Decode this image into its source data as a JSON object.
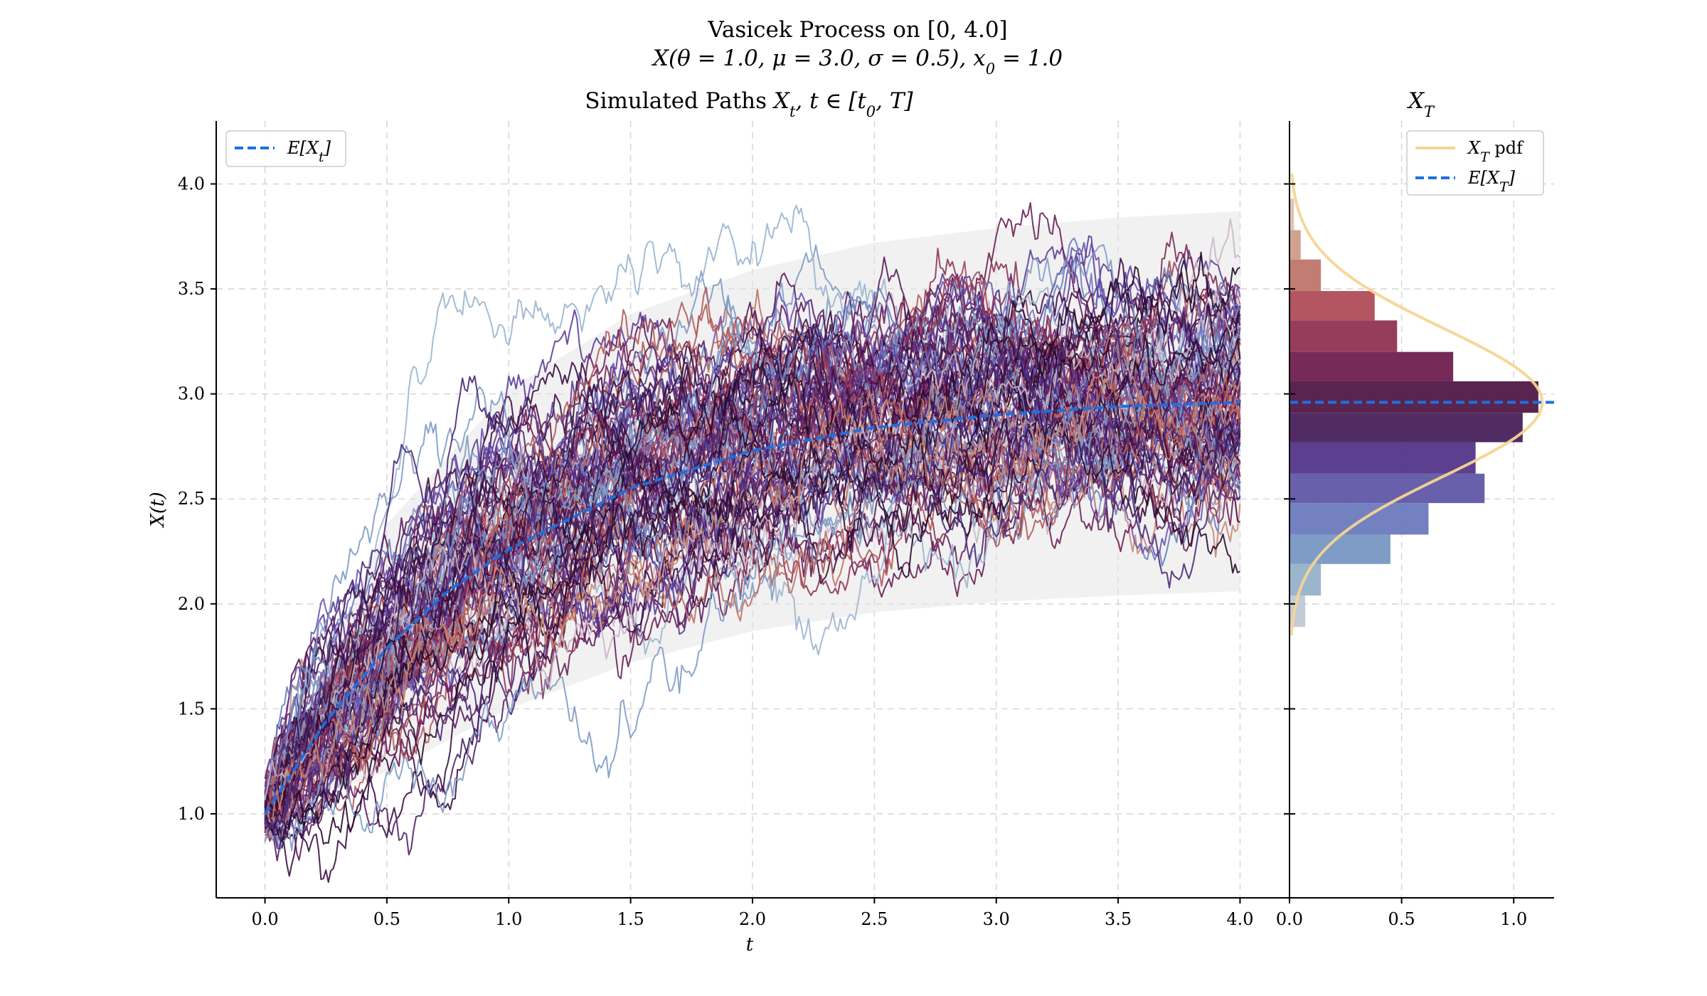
{
  "chart_data": [
    {
      "type": "line",
      "panel": "simulated-paths",
      "suptitle": "Vasicek Process on [0, 4.0]",
      "suptitle_line2": "X(θ = 1.0, μ = 3.0, σ = 0.5), x₀ = 1.0",
      "title": "Simulated Paths X_t, t ∈ [t₀, T]",
      "xlabel": "t",
      "ylabel": "X(t)",
      "xlim": [
        -0.2,
        4.2
      ],
      "ylim": [
        0.6,
        4.3
      ],
      "xticks": [
        0.0,
        0.5,
        1.0,
        1.5,
        2.0,
        2.5,
        3.0,
        3.5,
        4.0
      ],
      "xtick_labels": [
        "0.0",
        "0.5",
        "1.0",
        "1.5",
        "2.0",
        "2.5",
        "3.0",
        "3.5",
        "4.0"
      ],
      "yticks": [
        1.0,
        1.5,
        2.0,
        2.5,
        3.0,
        3.5,
        4.0
      ],
      "ytick_labels": [
        "1.0",
        "1.5",
        "2.0",
        "2.5",
        "3.0",
        "3.5",
        "4.0"
      ],
      "grid": true,
      "legend": {
        "position": "top-left",
        "entries": [
          "E[X_t]"
        ]
      },
      "process": {
        "theta": 1.0,
        "mu": 3.0,
        "sigma": 0.5,
        "x0": 1.0,
        "t0": 0.0,
        "T": 4.0
      },
      "num_paths": 100,
      "mean_path": {
        "name": "E[X_t]",
        "color": "#1f6fe0",
        "x": [
          0.0,
          0.25,
          0.5,
          0.75,
          1.0,
          1.5,
          2.0,
          2.5,
          3.0,
          3.5,
          4.0
        ],
        "y": [
          1.0,
          1.44,
          1.79,
          2.06,
          2.26,
          2.55,
          2.73,
          2.84,
          2.9,
          2.94,
          2.96
        ]
      },
      "confidence_band": {
        "color": "#e6e6e6",
        "x": [
          0.0,
          0.5,
          1.0,
          1.5,
          2.0,
          2.5,
          3.0,
          3.5,
          4.0
        ],
        "lower": [
          1.0,
          1.2,
          1.5,
          1.72,
          1.87,
          1.96,
          2.01,
          2.04,
          2.06
        ],
        "upper": [
          1.0,
          2.38,
          3.02,
          3.38,
          3.59,
          3.72,
          3.79,
          3.84,
          3.87
        ]
      }
    },
    {
      "type": "bar",
      "orientation": "horizontal",
      "panel": "terminal-distribution",
      "title": "X_T",
      "xlim": [
        0.0,
        1.18
      ],
      "xticks": [
        0.0,
        0.5,
        1.0
      ],
      "xtick_labels": [
        "0.0",
        "0.5",
        "1.0"
      ],
      "grid": true,
      "legend": {
        "position": "top-right",
        "entries": [
          "X_T pdf",
          "E[X_T]"
        ]
      },
      "bins": [
        {
          "lo": 1.89,
          "hi": 2.04,
          "density": 0.07
        },
        {
          "lo": 2.04,
          "hi": 2.19,
          "density": 0.14
        },
        {
          "lo": 2.19,
          "hi": 2.33,
          "density": 0.45
        },
        {
          "lo": 2.33,
          "hi": 2.48,
          "density": 0.62
        },
        {
          "lo": 2.48,
          "hi": 2.62,
          "density": 0.87
        },
        {
          "lo": 2.62,
          "hi": 2.77,
          "density": 0.83
        },
        {
          "lo": 2.77,
          "hi": 2.91,
          "density": 1.04
        },
        {
          "lo": 2.91,
          "hi": 3.06,
          "density": 1.11
        },
        {
          "lo": 3.06,
          "hi": 3.2,
          "density": 0.73
        },
        {
          "lo": 3.2,
          "hi": 3.35,
          "density": 0.48
        },
        {
          "lo": 3.35,
          "hi": 3.49,
          "density": 0.38
        },
        {
          "lo": 3.49,
          "hi": 3.64,
          "density": 0.14
        },
        {
          "lo": 3.64,
          "hi": 3.78,
          "density": 0.05
        },
        {
          "lo": 3.78,
          "hi": 3.93,
          "density": 0.02
        }
      ],
      "pdf": {
        "name": "X_T pdf",
        "mean": 2.96,
        "sd": 0.354,
        "color": "#f5d595"
      },
      "mean_line": {
        "name": "E[X_T]",
        "value": 2.96,
        "color": "#1f6fe0"
      }
    }
  ]
}
